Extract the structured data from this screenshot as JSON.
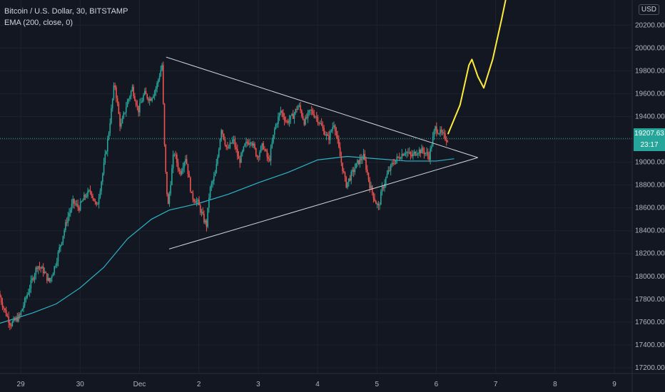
{
  "legend": {
    "symbol": "Bitcoin / U.S. Dollar, 30, BITSTAMP",
    "indicator": "EMA (200, close, 0)"
  },
  "price_axis": {
    "currency": "USD",
    "last_price": "19207.63",
    "countdown": "23:17"
  },
  "colors": {
    "background": "#131722",
    "up": "#26a69a",
    "down": "#ef5350",
    "ema": "#2bb5c8",
    "triangle": "#d1d4dc",
    "projection": "#ffeb3b",
    "grid": "#1e222d"
  },
  "chart_data": {
    "type": "candlestick",
    "x_ticks": [
      "29",
      "30",
      "Dec",
      "2",
      "3",
      "4",
      "5",
      "6",
      "7",
      "8",
      "9"
    ],
    "x_tick_days": [
      -2,
      -1,
      0,
      1,
      2,
      3,
      4,
      5,
      6,
      7,
      8
    ],
    "y_ticks": [
      17200,
      17400,
      17600,
      17800,
      18000,
      18200,
      18400,
      18600,
      18800,
      19000,
      19200,
      19400,
      19600,
      19800,
      20000,
      20200
    ],
    "y_tick_labels": [
      "17200.00",
      "17400.00",
      "17600.00",
      "17800.00",
      "18000.00",
      "18200.00",
      "18400.00",
      "18600.00",
      "18800.00",
      "19000.00",
      "19200.00",
      "19400.00",
      "19600.00",
      "19800.00",
      "20000.00",
      "20200.00"
    ],
    "ylim": [
      17150,
      20420
    ],
    "x_range_days": [
      -2.35,
      8.3
    ],
    "last_price": 19207.63,
    "price_path": [
      [
        -2.35,
        17850
      ],
      [
        -2.25,
        17700
      ],
      [
        -2.15,
        17580
      ],
      [
        -2.0,
        17650
      ],
      [
        -1.9,
        17800
      ],
      [
        -1.8,
        17950
      ],
      [
        -1.7,
        18100
      ],
      [
        -1.6,
        18050
      ],
      [
        -1.5,
        17950
      ],
      [
        -1.4,
        18100
      ],
      [
        -1.3,
        18300
      ],
      [
        -1.2,
        18500
      ],
      [
        -1.1,
        18650
      ],
      [
        -1.0,
        18600
      ],
      [
        -0.9,
        18700
      ],
      [
        -0.8,
        18750
      ],
      [
        -0.7,
        18600
      ],
      [
        -0.6,
        18900
      ],
      [
        -0.5,
        19250
      ],
      [
        -0.4,
        19700
      ],
      [
        -0.3,
        19300
      ],
      [
        -0.2,
        19500
      ],
      [
        -0.1,
        19650
      ],
      [
        0.0,
        19450
      ],
      [
        0.1,
        19600
      ],
      [
        0.2,
        19550
      ],
      [
        0.3,
        19650
      ],
      [
        0.4,
        19850
      ],
      [
        0.45,
        19000
      ],
      [
        0.5,
        18600
      ],
      [
        0.6,
        19100
      ],
      [
        0.7,
        18900
      ],
      [
        0.8,
        19050
      ],
      [
        0.9,
        18700
      ],
      [
        1.0,
        18650
      ],
      [
        1.1,
        18500
      ],
      [
        1.15,
        18450
      ],
      [
        1.2,
        18750
      ],
      [
        1.3,
        18900
      ],
      [
        1.4,
        19300
      ],
      [
        1.5,
        19100
      ],
      [
        1.6,
        19200
      ],
      [
        1.7,
        19000
      ],
      [
        1.8,
        19150
      ],
      [
        1.9,
        19200
      ],
      [
        2.0,
        19050
      ],
      [
        2.1,
        19150
      ],
      [
        2.2,
        19000
      ],
      [
        2.3,
        19300
      ],
      [
        2.4,
        19450
      ],
      [
        2.5,
        19350
      ],
      [
        2.6,
        19400
      ],
      [
        2.7,
        19500
      ],
      [
        2.8,
        19350
      ],
      [
        2.9,
        19450
      ],
      [
        3.0,
        19400
      ],
      [
        3.1,
        19300
      ],
      [
        3.2,
        19200
      ],
      [
        3.3,
        19350
      ],
      [
        3.4,
        19050
      ],
      [
        3.5,
        18800
      ],
      [
        3.6,
        18900
      ],
      [
        3.7,
        19000
      ],
      [
        3.8,
        19050
      ],
      [
        3.9,
        18800
      ],
      [
        4.0,
        18650
      ],
      [
        4.05,
        18600
      ],
      [
        4.1,
        18750
      ],
      [
        4.2,
        18900
      ],
      [
        4.3,
        19000
      ],
      [
        4.4,
        19050
      ],
      [
        4.5,
        19100
      ],
      [
        4.6,
        19050
      ],
      [
        4.7,
        19100
      ],
      [
        4.8,
        19100
      ],
      [
        4.9,
        19050
      ],
      [
        5.0,
        19300
      ],
      [
        5.1,
        19250
      ],
      [
        5.2,
        19200
      ]
    ],
    "ema_path": [
      [
        -2.35,
        17590
      ],
      [
        -1.8,
        17680
      ],
      [
        -1.4,
        17760
      ],
      [
        -1.0,
        17900
      ],
      [
        -0.6,
        18080
      ],
      [
        -0.2,
        18330
      ],
      [
        0.2,
        18500
      ],
      [
        0.5,
        18580
      ],
      [
        1.0,
        18640
      ],
      [
        1.5,
        18720
      ],
      [
        2.0,
        18820
      ],
      [
        2.5,
        18910
      ],
      [
        3.0,
        19020
      ],
      [
        3.5,
        19050
      ],
      [
        4.0,
        19030
      ],
      [
        4.5,
        19010
      ],
      [
        5.0,
        19010
      ],
      [
        5.3,
        19030
      ]
    ],
    "triangle": {
      "upper": [
        [
          0.45,
          19920
        ],
        [
          5.7,
          19040
        ]
      ],
      "lower": [
        [
          0.5,
          18240
        ],
        [
          5.7,
          19040
        ]
      ]
    },
    "projection_path": [
      [
        5.2,
        19250
      ],
      [
        5.4,
        19500
      ],
      [
        5.55,
        19850
      ],
      [
        5.6,
        19900
      ],
      [
        5.7,
        19750
      ],
      [
        5.8,
        19650
      ],
      [
        5.95,
        19900
      ],
      [
        6.1,
        20250
      ],
      [
        6.2,
        20500
      ]
    ]
  }
}
